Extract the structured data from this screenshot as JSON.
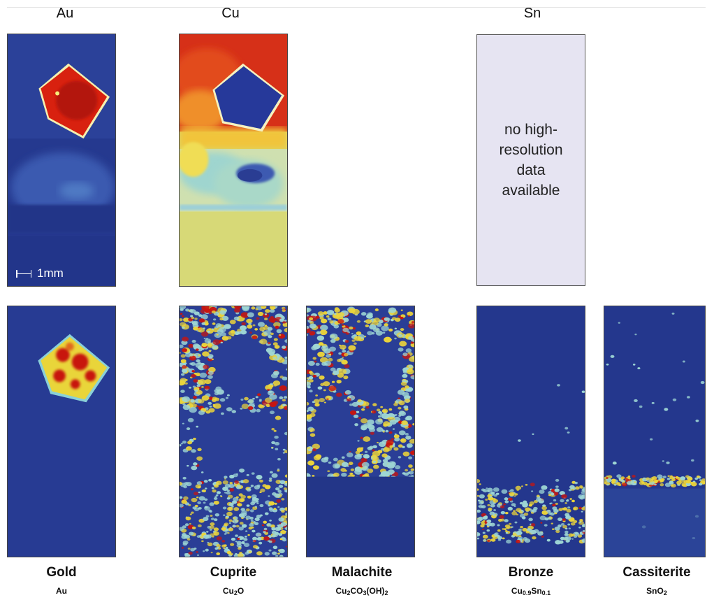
{
  "column_labels": {
    "au": "Au",
    "cu": "Cu",
    "sn": "Sn"
  },
  "no_data_text": "no high-resolution data available",
  "scale_bar": "1mm",
  "minerals": [
    {
      "name": "Gold",
      "formula": "Au"
    },
    {
      "name": "Cuprite",
      "formula": "Cu2O"
    },
    {
      "name": "Malachite",
      "formula": "Cu2CO3(OH)2"
    },
    {
      "name": "Bronze",
      "formula": "Cu0.9Sn0.1"
    },
    {
      "name": "Cassiterite",
      "formula": "SnO2"
    }
  ],
  "colors": {
    "background_blue": "#2a3d93",
    "hot_red": "#c8150f",
    "warm_yellow": "#e8e04a",
    "cyan": "#9fd4d0",
    "nodata_panel": "#e6e4f2"
  }
}
